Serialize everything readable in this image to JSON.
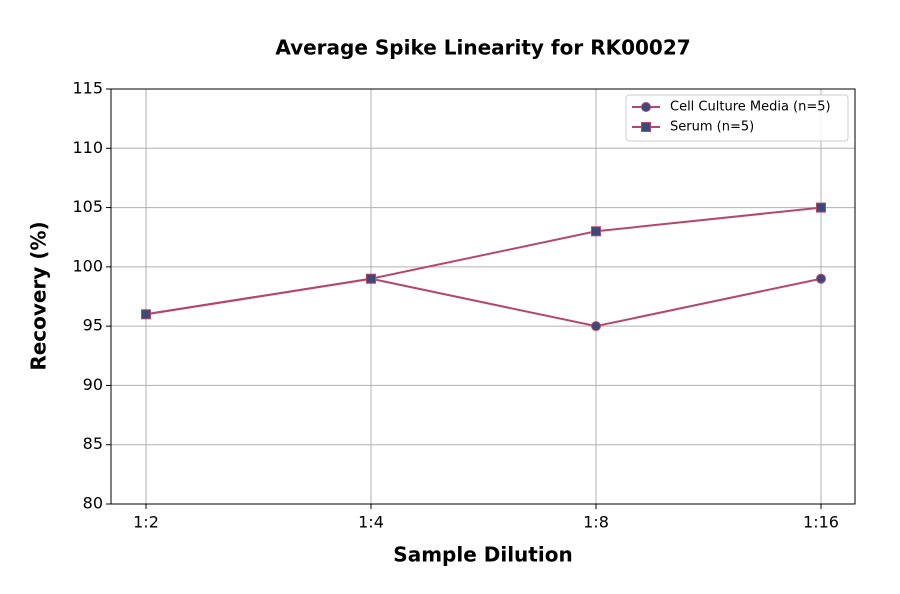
{
  "chart_data": {
    "type": "line",
    "title": "Average Spike Linearity for RK00027",
    "x_label": "Sample Dilution",
    "y_label": "Recovery (%)",
    "categories": [
      "1:2",
      "1:4",
      "1:8",
      "1:16"
    ],
    "series": [
      {
        "name": "Cell Culture Media (n=5)",
        "color": "#b5476f",
        "marker_color": "#3b4a78",
        "marker": "circle",
        "values": [
          96,
          99,
          95,
          99
        ]
      },
      {
        "name": "Serum (n=5)",
        "color": "#b5476f",
        "marker_color": "#3b4a78",
        "marker": "square",
        "values": [
          96,
          99,
          103,
          105
        ]
      }
    ],
    "ylim": [
      80,
      115
    ],
    "yticks": [
      80,
      85,
      90,
      95,
      100,
      105,
      110,
      115
    ],
    "grid": true,
    "legend_position": "upper right"
  }
}
